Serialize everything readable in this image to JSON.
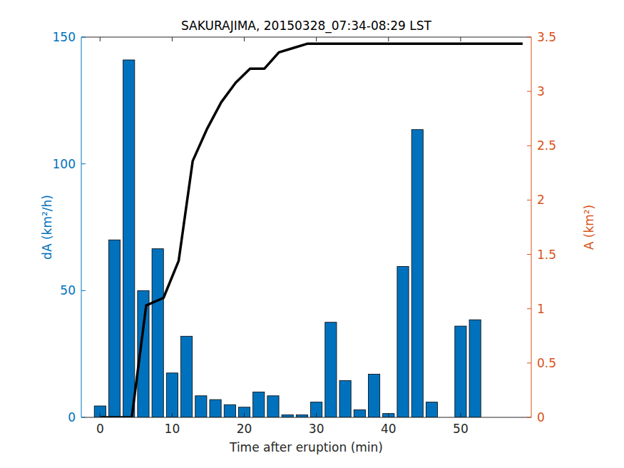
{
  "chart_data": {
    "type": "bar",
    "title": "SAKURAJIMA, 20150328_07:34-08:29 LST",
    "x_label": "Time after eruption (min)",
    "y_label": "dA (km²/h)",
    "y2_label": "A (km²)",
    "xlim": [
      -2.6,
      59.8
    ],
    "xticks": [
      0,
      10,
      20,
      30,
      40,
      50
    ],
    "ylim": [
      0,
      150
    ],
    "yticks": [
      0,
      50,
      100,
      150
    ],
    "y2lim": [
      0,
      3.5
    ],
    "y2ticks": [
      0,
      0.5,
      1,
      1.5,
      2,
      2.5,
      3,
      3.5
    ],
    "grid": false,
    "series": [
      {
        "name": "dA",
        "type": "bar",
        "color": "#0072bd",
        "x": [
          0,
          2,
          4,
          6,
          8,
          10,
          12,
          14,
          16,
          18,
          20,
          22,
          24,
          26,
          28,
          30,
          32,
          34,
          36,
          38,
          40,
          42,
          44,
          46,
          48,
          50,
          52
        ],
        "values": [
          4.5,
          70,
          141,
          50,
          66.5,
          17.5,
          32,
          8.5,
          7,
          5,
          4,
          10,
          8.5,
          1,
          1,
          6,
          37.5,
          14.5,
          3,
          17,
          1.5,
          59.5,
          113.5,
          6,
          0,
          36,
          38.5
        ]
      },
      {
        "name": "A",
        "type": "line",
        "color": "#000000",
        "axis": "y2",
        "x": [
          0,
          2,
          4.4,
          6.4,
          8.8,
          10.9,
          12.85,
          14.8,
          16.8,
          18.8,
          20.8,
          22.8,
          24.8,
          26.8,
          28.8,
          58.6
        ],
        "values": [
          0,
          0,
          0,
          1.03,
          1.1,
          1.44,
          2.36,
          2.65,
          2.9,
          3.08,
          3.21,
          3.21,
          3.36,
          3.4,
          3.44,
          3.44
        ]
      }
    ]
  }
}
